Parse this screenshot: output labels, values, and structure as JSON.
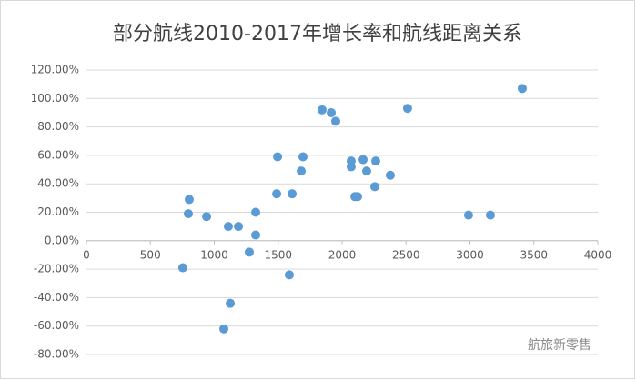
{
  "chart_data": {
    "type": "scatter",
    "title": "部分航线2010-2017年增长率和航线距离关系",
    "color": "#5b9bd5",
    "grid": true,
    "xlim": [
      0,
      4000
    ],
    "xticks": [
      0,
      500,
      1000,
      1500,
      2000,
      2500,
      3000,
      3500,
      4000
    ],
    "ylim": [
      -80,
      120
    ],
    "yticks": [
      {
        "value": -80,
        "label": "-80.00%"
      },
      {
        "value": -60,
        "label": "-60.00%"
      },
      {
        "value": -40,
        "label": "-40.00%"
      },
      {
        "value": -20,
        "label": "-20.00%"
      },
      {
        "value": 0,
        "label": "0.00%"
      },
      {
        "value": 20,
        "label": "20.00%"
      },
      {
        "value": 40,
        "label": "40.00%"
      },
      {
        "value": 60,
        "label": "60.00%"
      },
      {
        "value": 80,
        "label": "80.00%"
      },
      {
        "value": 100,
        "label": "100.00%"
      },
      {
        "value": 120,
        "label": "120.00%"
      }
    ],
    "x": [
      754,
      804,
      797,
      940,
      1075,
      1110,
      1125,
      1189,
      1274,
      1324,
      1324,
      1495,
      1488,
      1609,
      1587,
      1694,
      1680,
      1843,
      1915,
      1950,
      2071,
      2071,
      2100,
      2121,
      2164,
      2192,
      2263,
      2256,
      2377,
      2512,
      2989,
      3160,
      3409
    ],
    "values": [
      -19,
      29,
      19,
      17,
      -62,
      10,
      -44,
      10,
      -8,
      20,
      4,
      59,
      33,
      33,
      -24,
      59,
      49,
      92,
      90,
      84,
      56,
      52,
      31,
      31,
      57,
      49,
      56,
      38,
      46,
      93,
      18,
      18,
      107
    ],
    "watermark": "航旅新零售"
  }
}
